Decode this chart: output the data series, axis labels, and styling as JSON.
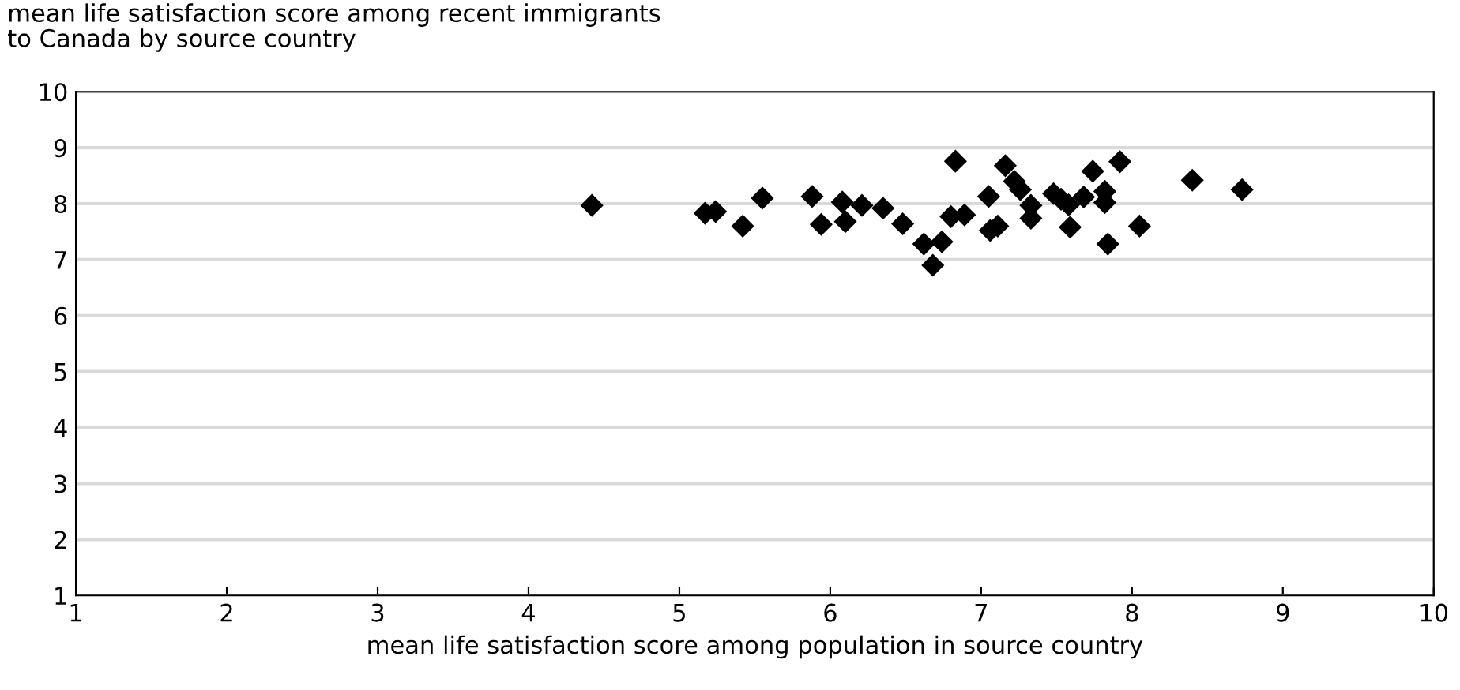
{
  "chart_data": {
    "type": "scatter",
    "title": "mean life satisfaction score among recent immigrants\nto Canada by source country",
    "xlabel": "mean life satisfaction score among population in source country",
    "x": [
      4.42,
      5.17,
      5.24,
      5.42,
      5.55,
      5.88,
      5.94,
      6.08,
      6.1,
      6.21,
      6.35,
      6.48,
      6.62,
      6.68,
      6.74,
      6.8,
      6.83,
      6.89,
      7.05,
      7.06,
      7.11,
      7.16,
      7.22,
      7.26,
      7.33,
      7.33,
      7.48,
      7.53,
      7.58,
      7.59,
      7.68,
      7.74,
      7.82,
      7.82,
      7.84,
      7.92,
      8.05,
      8.4,
      8.73
    ],
    "values": [
      7.97,
      7.83,
      7.86,
      7.6,
      8.1,
      8.13,
      7.63,
      8.03,
      7.68,
      7.97,
      7.92,
      7.64,
      7.28,
      6.9,
      7.32,
      7.77,
      8.76,
      7.8,
      8.13,
      7.52,
      7.6,
      8.68,
      8.4,
      8.25,
      7.97,
      7.74,
      8.18,
      8.08,
      7.98,
      7.58,
      8.12,
      8.58,
      8.22,
      8.02,
      7.28,
      8.75,
      7.6,
      8.42,
      8.25
    ],
    "color": "#000000",
    "marker": "diamond",
    "xlim": [
      1,
      10
    ],
    "xticks": [
      1,
      2,
      3,
      4,
      5,
      6,
      7,
      8,
      9,
      10
    ],
    "ylim": [
      1,
      10
    ],
    "yticks": [
      1,
      2,
      3,
      4,
      5,
      6,
      7,
      8,
      9,
      10
    ],
    "grid": "y"
  }
}
